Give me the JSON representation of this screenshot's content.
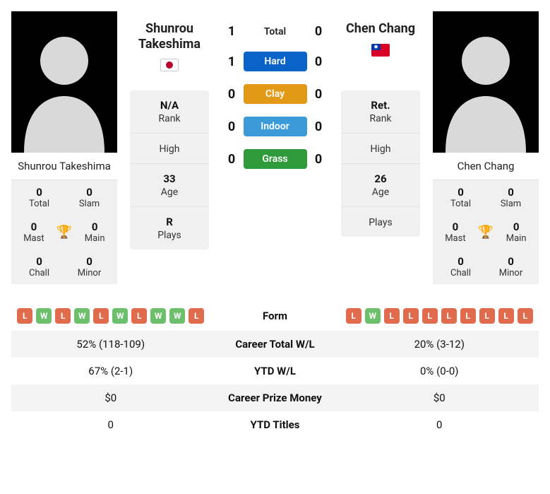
{
  "player1": {
    "name": "Shunrou Takeshima",
    "flag": "jp",
    "rank": "N/A",
    "high": "",
    "age": "33",
    "plays": "R",
    "titles": {
      "total": "0",
      "slam": "0",
      "mast": "0",
      "main": "0",
      "chall": "0",
      "minor": "0"
    }
  },
  "player2": {
    "name": "Chen Chang",
    "flag": "tw",
    "rank": "Ret.",
    "high": "",
    "age": "26",
    "plays": "",
    "titles": {
      "total": "0",
      "slam": "0",
      "mast": "0",
      "main": "0",
      "chall": "0",
      "minor": "0"
    }
  },
  "labels": {
    "rank": "Rank",
    "high": "High",
    "age": "Age",
    "plays": "Plays",
    "total": "Total",
    "slam": "Slam",
    "mast": "Mast",
    "main": "Main",
    "chall": "Chall",
    "minor": "Minor"
  },
  "h2h": {
    "total_label": "Total",
    "rows": [
      {
        "p1": "1",
        "label": "Total",
        "kind": "total",
        "p2": "0"
      },
      {
        "p1": "1",
        "label": "Hard",
        "kind": "hard",
        "p2": "0"
      },
      {
        "p1": "0",
        "label": "Clay",
        "kind": "clay",
        "p2": "0"
      },
      {
        "p1": "0",
        "label": "Indoor",
        "kind": "indoor",
        "p2": "0"
      },
      {
        "p1": "0",
        "label": "Grass",
        "kind": "grass",
        "p2": "0"
      }
    ]
  },
  "compare": {
    "form_label": "Form",
    "p1_form": [
      "L",
      "W",
      "L",
      "W",
      "L",
      "W",
      "L",
      "W",
      "W",
      "L"
    ],
    "p2_form": [
      "L",
      "W",
      "L",
      "L",
      "L",
      "L",
      "L",
      "L",
      "L",
      "L"
    ],
    "rows": [
      {
        "label": "Career Total W/L",
        "p1": "52% (118-109)",
        "p2": "20% (3-12)"
      },
      {
        "label": "YTD W/L",
        "p1": "67% (2-1)",
        "p2": "0% (0-0)"
      },
      {
        "label": "Career Prize Money",
        "p1": "$0",
        "p2": "$0"
      },
      {
        "label": "YTD Titles",
        "p1": "0",
        "p2": "0"
      }
    ]
  }
}
